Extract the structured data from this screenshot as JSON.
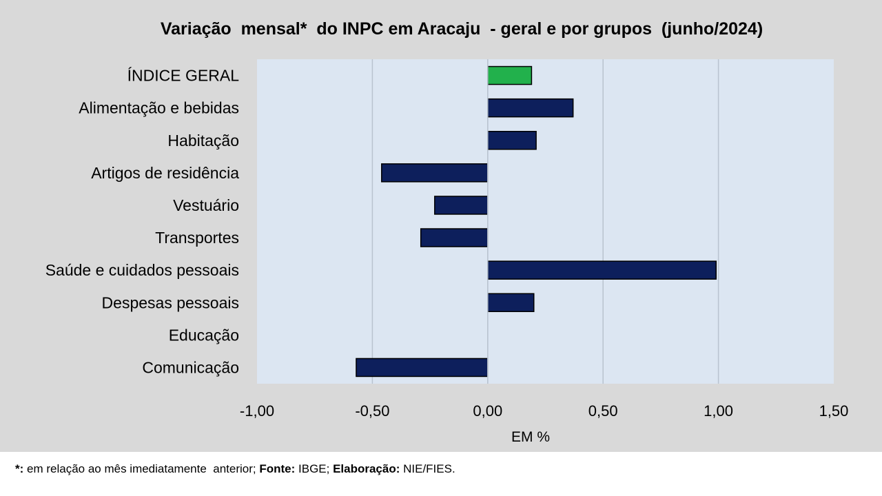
{
  "chart_data": {
    "type": "bar",
    "orientation": "horizontal",
    "title": "Variação  mensal*  do INPC em Aracaju  - geral e por grupos  (junho/2024)",
    "xlabel": "EM %",
    "xlim": [
      -1.0,
      1.5
    ],
    "xticks": [
      -1.0,
      -0.5,
      0.0,
      0.5,
      1.0,
      1.5
    ],
    "xtick_labels": [
      "-1,00",
      "-0,50",
      "0,00",
      "0,50",
      "1,00",
      "1,50"
    ],
    "categories": [
      "ÍNDICE GERAL",
      "Alimentação e bebidas",
      "Habitação",
      "Artigos de residência",
      "Vestuário",
      "Transportes",
      "Saúde e cuidados pessoais",
      "Despesas pessoais",
      "Educação",
      "Comunicação"
    ],
    "values": [
      0.19,
      0.37,
      0.21,
      -0.46,
      -0.23,
      -0.29,
      0.99,
      0.2,
      0.0,
      -0.57
    ],
    "colors": [
      "#22b14c",
      "#0d1f5c",
      "#0d1f5c",
      "#0d1f5c",
      "#0d1f5c",
      "#0d1f5c",
      "#0d1f5c",
      "#0d1f5c",
      "#0d1f5c",
      "#0d1f5c"
    ],
    "plot_background": "#dce6f2",
    "grid": true
  },
  "footnote": {
    "mark": "*:",
    "text1": " em relação ao mês imediatamente  anterior; ",
    "fonte_label": "Fonte:",
    "fonte_value": " IBGE; ",
    "elab_label": "Elaboração:",
    "elab_value": " NIE/FIES."
  }
}
